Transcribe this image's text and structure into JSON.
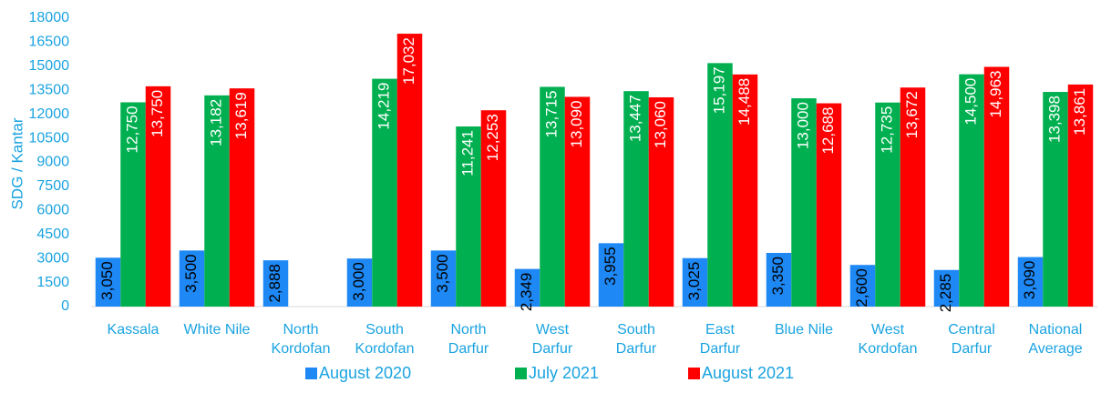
{
  "chart_data": {
    "type": "bar",
    "ylabel": "SDG / Kantar",
    "categories": [
      "Kassala",
      "White Nile",
      "North\nKordofan",
      "South\nKordofan",
      "North\nDarfur",
      "West\nDarfur",
      "South\nDarfur",
      "East\nDarfur",
      "Blue Nile",
      "West\nKordofan",
      "Central\nDarfur",
      "National\nAverage"
    ],
    "series": [
      {
        "name": "August 2020",
        "color": "#1e88f5",
        "label_color": "#000000",
        "values": [
          3050,
          3500,
          2888,
          3000,
          3500,
          2349,
          3955,
          3025,
          3350,
          2600,
          2285,
          3090
        ],
        "value_labels": [
          "3,050",
          "3,500",
          "2,888",
          "3,000",
          "3,500",
          "2,349",
          "3,955",
          "3,025",
          "3,350",
          "2,600",
          "2,285",
          "3,090"
        ]
      },
      {
        "name": "July 2021",
        "color": "#00b050",
        "label_color": "#ffffff",
        "values": [
          12750,
          13182,
          null,
          14219,
          11241,
          13715,
          13447,
          15197,
          13000,
          12735,
          14500,
          13398
        ],
        "value_labels": [
          "12,750",
          "13,182",
          null,
          "14,219",
          "11,241",
          "13,715",
          "13,447",
          "15,197",
          "13,000",
          "12,735",
          "14,500",
          "13,398"
        ]
      },
      {
        "name": "August 2021",
        "color": "#ff0000",
        "label_color": "#ffffff",
        "values": [
          13750,
          13619,
          null,
          17032,
          12253,
          13090,
          13060,
          14488,
          12688,
          13672,
          14963,
          13861
        ],
        "value_labels": [
          "13,750",
          "13,619",
          null,
          "17,032",
          "12,253",
          "13,090",
          "13,060",
          "14,488",
          "12,688",
          "13,672",
          "14,963",
          "13,861"
        ]
      }
    ],
    "ylim": [
      0,
      18000
    ],
    "yticks": [
      0,
      1500,
      3000,
      4500,
      6000,
      7500,
      9000,
      10500,
      12000,
      13500,
      15000,
      16500,
      18000
    ],
    "grid": false,
    "legend": "bottom"
  }
}
